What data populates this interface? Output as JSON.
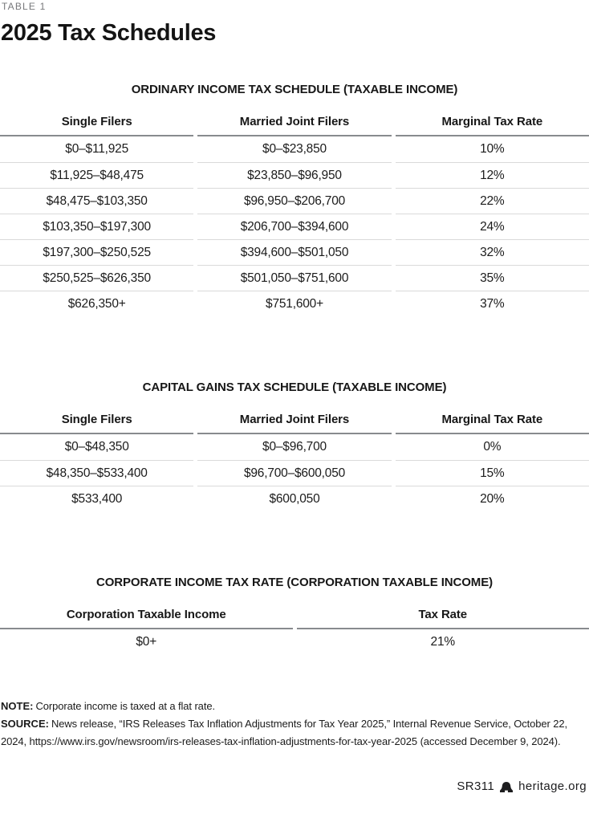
{
  "header": {
    "kicker": "TABLE 1",
    "title": "2025 Tax Schedules"
  },
  "tables": [
    {
      "title": "ORDINARY INCOME TAX SCHEDULE (TAXABLE INCOME)",
      "columns": [
        "Single Filers",
        "Married Joint Filers",
        "Marginal Tax Rate"
      ],
      "rows": [
        [
          "$0–$11,925",
          "$0–$23,850",
          "10%"
        ],
        [
          "$11,925–$48,475",
          "$23,850–$96,950",
          "12%"
        ],
        [
          "$48,475–$103,350",
          "$96,950–$206,700",
          "22%"
        ],
        [
          "$103,350–$197,300",
          "$206,700–$394,600",
          "24%"
        ],
        [
          "$197,300–$250,525",
          "$394,600–$501,050",
          "32%"
        ],
        [
          "$250,525–$626,350",
          "$501,050–$751,600",
          "35%"
        ],
        [
          "$626,350+",
          "$751,600+",
          "37%"
        ]
      ]
    },
    {
      "title": "CAPITAL GAINS TAX SCHEDULE (TAXABLE INCOME)",
      "columns": [
        "Single Filers",
        "Married Joint Filers",
        "Marginal Tax Rate"
      ],
      "rows": [
        [
          "$0–$48,350",
          "$0–$96,700",
          "0%"
        ],
        [
          "$48,350–$533,400",
          "$96,700–$600,050",
          "15%"
        ],
        [
          "$533,400",
          "$600,050",
          "20%"
        ]
      ]
    },
    {
      "title": "CORPORATE INCOME TAX RATE (CORPORATION TAXABLE INCOME)",
      "columns": [
        "Corporation Taxable Income",
        "Tax Rate"
      ],
      "rows": [
        [
          "$0+",
          "21%"
        ]
      ]
    }
  ],
  "notes": {
    "note_label": "NOTE:",
    "note_text": "Corporate income is taxed at a flat rate.",
    "source_label": "SOURCE:",
    "source_text": "News release, “IRS Releases Tax Inflation Adjustments for Tax Year 2025,” Internal Revenue Service, October 22, 2024, https://www.irs.gov/newsroom/irs-releases-tax-inflation-adjustments-for-tax-year-2025 (accessed December 9, 2024)."
  },
  "footer": {
    "report_id": "SR311",
    "icon": "liberty-bell-icon",
    "site": "heritage.org"
  },
  "colors": {
    "text": "#1d1d1f",
    "kicker_gray": "#77787b",
    "header_rule": "#888b8e",
    "row_rule": "#dadada"
  }
}
